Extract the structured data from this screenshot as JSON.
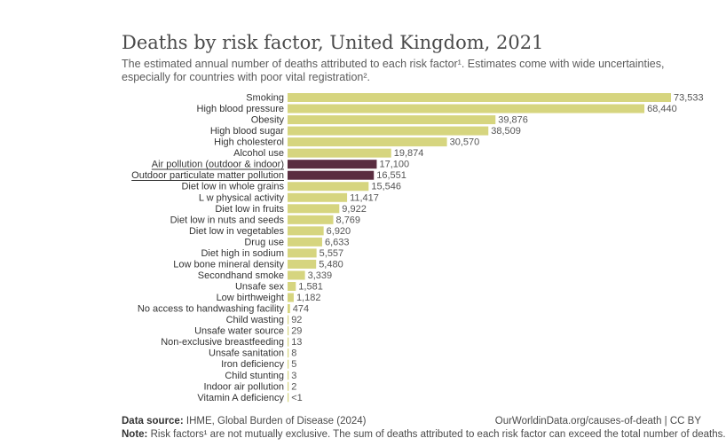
{
  "title": "Deaths by risk factor, United Kingdom, 2021",
  "subtitle": "The estimated annual number of deaths attributed to each risk factor¹. Estimates come with wide uncertainties, especially for countries with poor vital registration².",
  "footer": {
    "source_label": "Data source:",
    "source_text": "IHME, Global Burden of Disease (2024)",
    "url": "OurWorldinData.org/causes-of-death | CC BY",
    "note_label": "Note:",
    "note_text": "Risk factors¹ are not mutually exclusive. The sum of deaths attributed to each risk factor can exceed the total number of deaths."
  },
  "chart_data": {
    "type": "bar",
    "orientation": "horizontal",
    "colors": {
      "default": "#d6d57f",
      "highlight": "#5a2d40",
      "label": "#555555"
    },
    "highlighted": [
      "Air pollution (outdoor & indoor)",
      "Outdoor particulate matter pollution"
    ],
    "categories": [
      "Smoking",
      "High blood pressure",
      "Obesity",
      "High blood sugar",
      "High cholesterol",
      "Alcohol use",
      "Air pollution (outdoor & indoor)",
      "Outdoor particulate matter pollution",
      "Diet low in whole grains",
      "L  w physical activity",
      "Diet low in fruits",
      "Diet low in nuts and seeds",
      "Diet low in vegetables",
      "Drug use",
      "Diet high in sodium",
      "Low bone mineral density",
      "Secondhand smoke",
      "Unsafe sex",
      "Low birthweight",
      "No access to handwashing facility",
      "Child wasting",
      "Unsafe water source",
      "Non-exclusive breastfeeding",
      "Unsafe sanitation",
      "Iron deficiency",
      "Child stunting",
      "Indoor air pollution",
      "Vitamin A deficiency"
    ],
    "values": [
      73533,
      68440,
      39876,
      38509,
      30570,
      19874,
      17100,
      16551,
      15546,
      11417,
      9922,
      8769,
      6920,
      6633,
      5557,
      5480,
      3339,
      1581,
      1182,
      474,
      92,
      29,
      13,
      8,
      5,
      3,
      2,
      0.5
    ],
    "value_labels": [
      "73,533",
      "68,440",
      "39,876",
      "38,509",
      "30,570",
      "19,874",
      "17,100",
      "16,551",
      "15,546",
      "11,417",
      "9,922",
      "8,769",
      "6,920",
      "6,633",
      "5,557",
      "5,480",
      "3,339",
      "1,581",
      "1,182",
      "474",
      "92",
      "29",
      "13",
      "8",
      "5",
      "3",
      "2",
      "<1"
    ]
  }
}
